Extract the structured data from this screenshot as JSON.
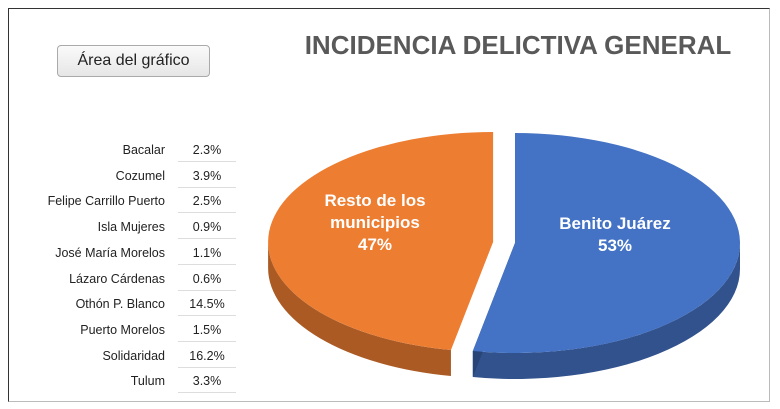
{
  "chart_data": {
    "type": "pie",
    "title": "INCIDENCIA DELICTIVA GENERAL",
    "categories": [
      "Resto de los municipios",
      "Benito Juárez"
    ],
    "values": [
      47,
      53
    ],
    "value_labels": [
      "47%",
      "53%"
    ],
    "colors": [
      "#ed7d31",
      "#4472c4"
    ]
  },
  "tooltip": "Área del gráfico",
  "table": {
    "rows": [
      [
        "Bacalar",
        "2.3%"
      ],
      [
        "Cozumel",
        "3.9%"
      ],
      [
        "Felipe Carrillo Puerto",
        "2.5%"
      ],
      [
        "Isla Mujeres",
        "0.9%"
      ],
      [
        "José María Morelos",
        "1.1%"
      ],
      [
        "Lázaro Cárdenas",
        "0.6%"
      ],
      [
        "Othón P. Blanco",
        "14.5%"
      ],
      [
        "Puerto Morelos",
        "1.5%"
      ],
      [
        "Solidaridad",
        "16.2%"
      ],
      [
        "Tulum",
        "3.3%"
      ]
    ]
  }
}
